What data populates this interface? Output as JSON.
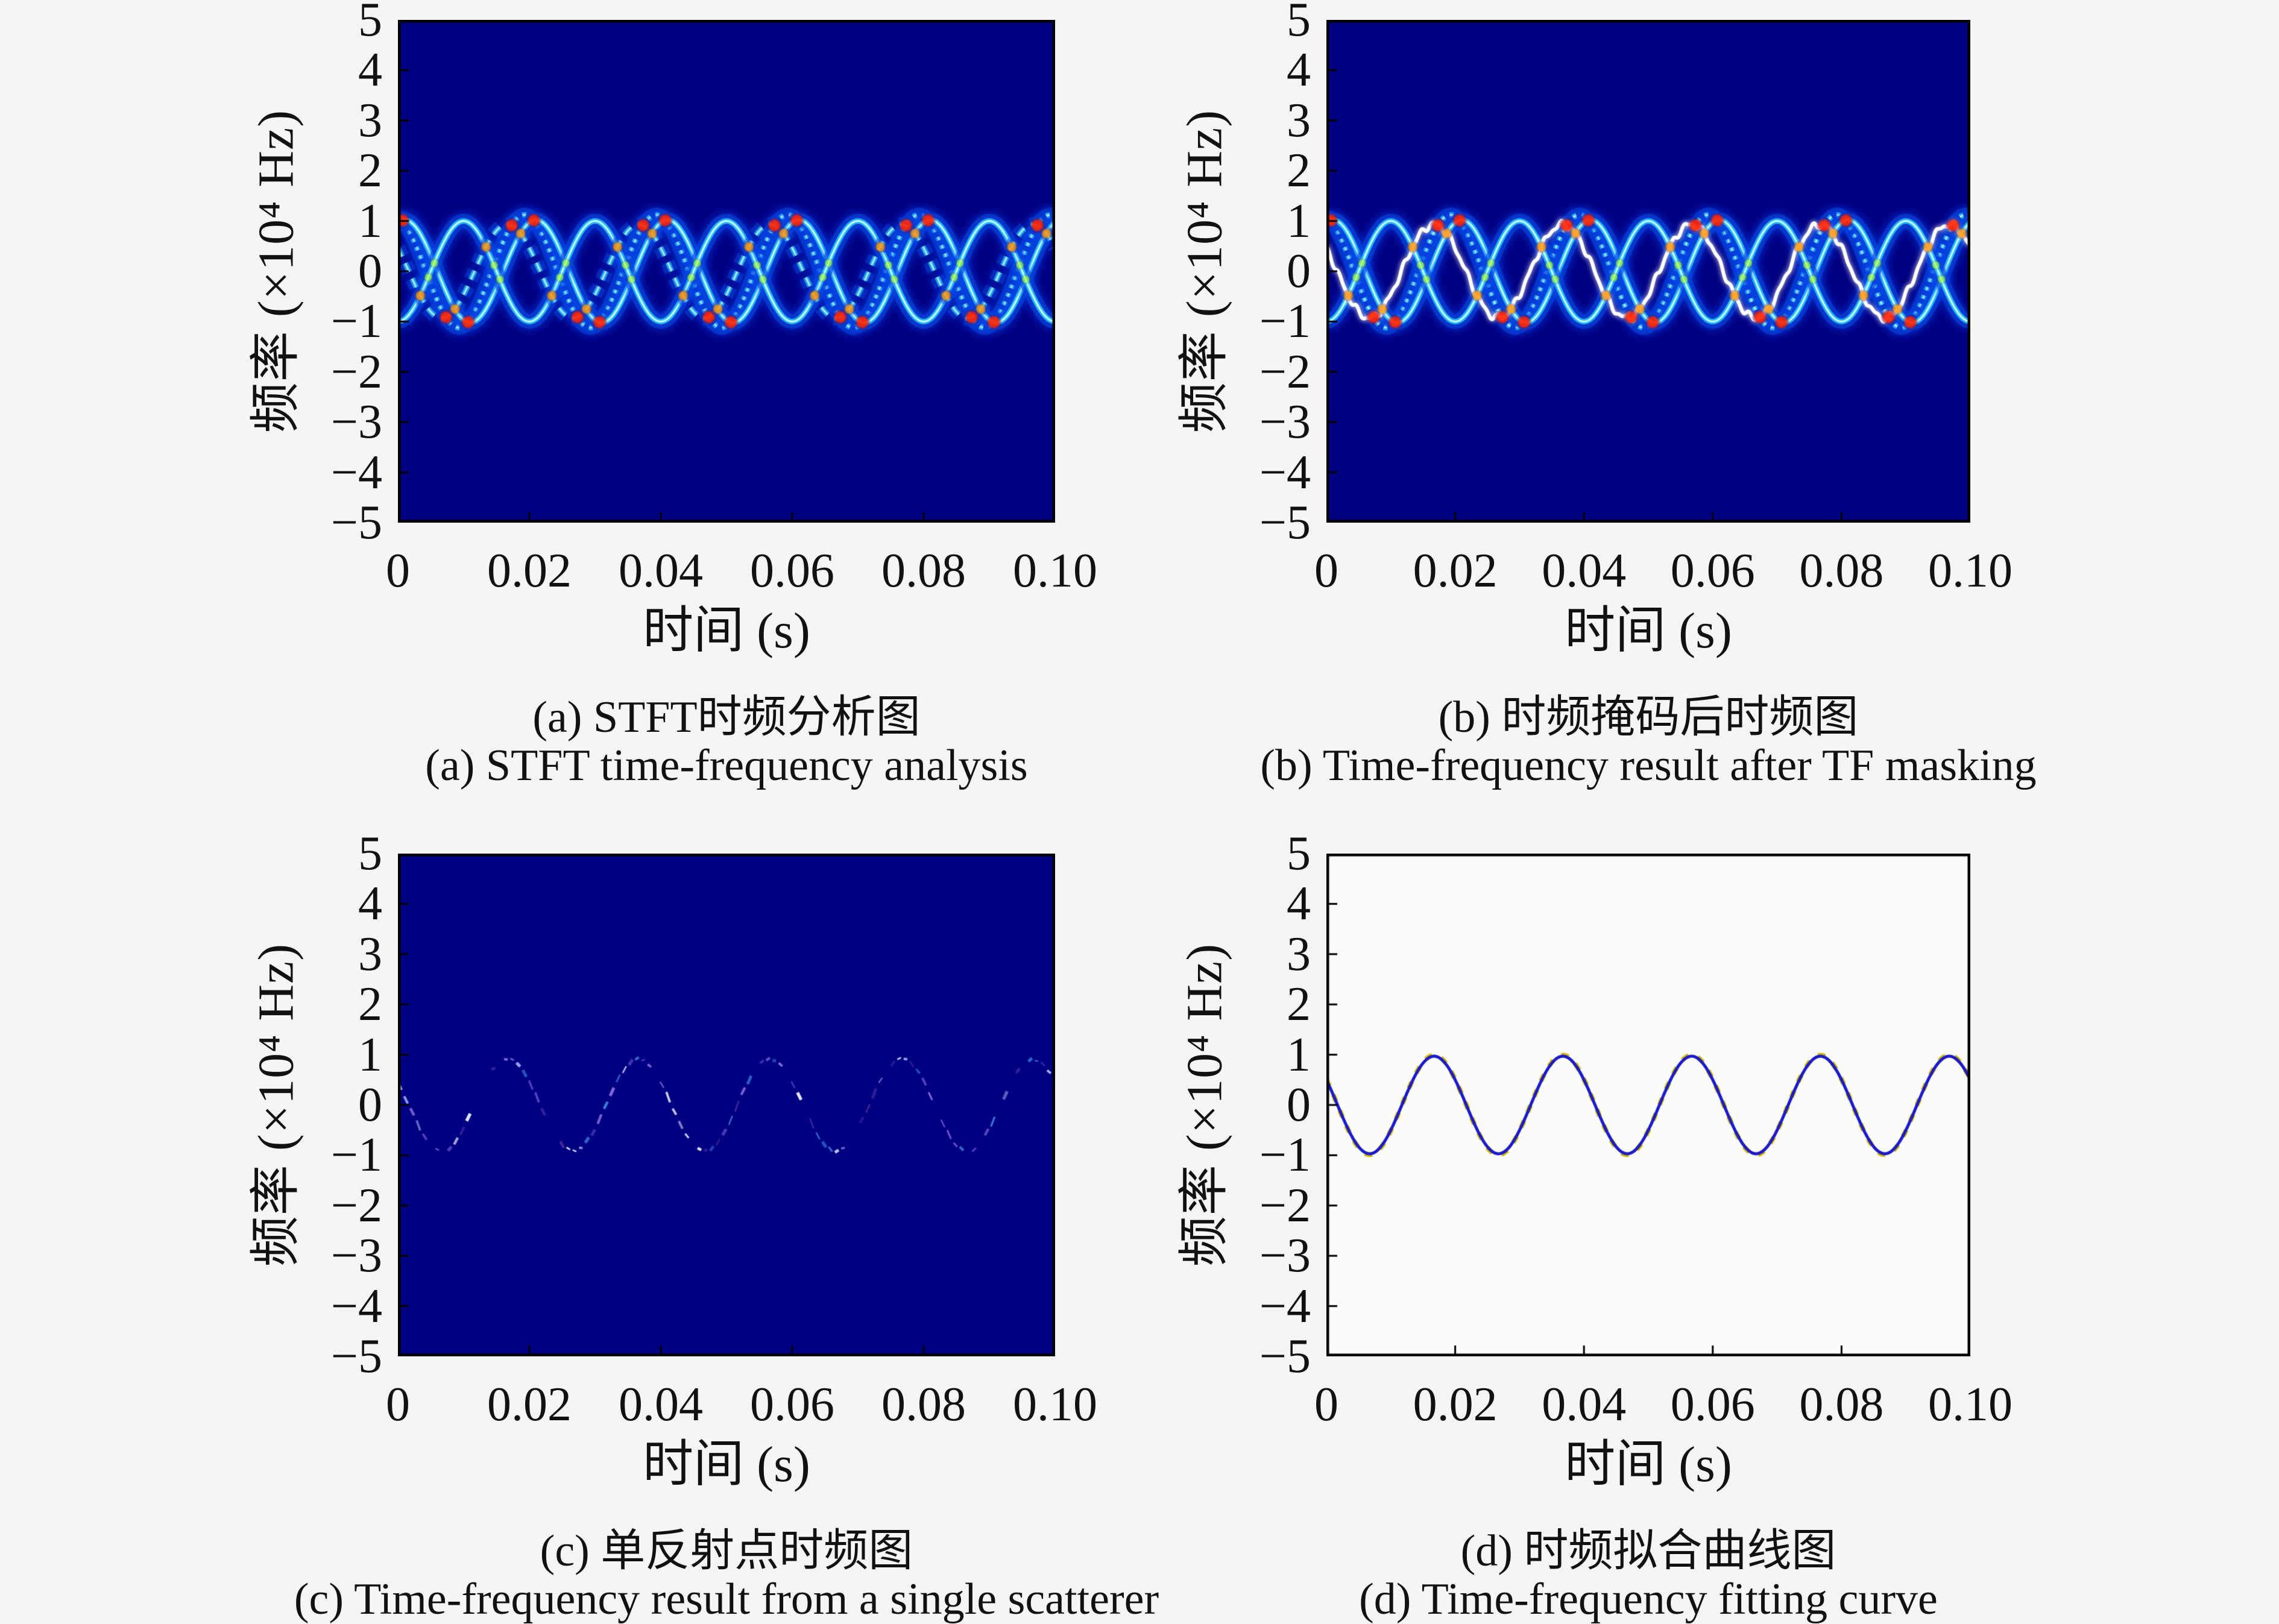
{
  "figure": {
    "rows": 2,
    "cols": 2,
    "page_background": "#f5f5f3",
    "text_color": "#111111"
  },
  "chart_data": [
    {
      "id": "a",
      "type": "heatmap",
      "variant": "stft-spectrogram",
      "title_zh": "(a) STFT时频分析图",
      "title_en": "(a) STFT time-frequency analysis",
      "xlabel": "时间 (s)",
      "ylabel": "频率 (×10⁴ Hz)",
      "xlim": [
        0,
        0.1
      ],
      "ylim": [
        -5,
        5
      ],
      "xticks": [
        "0",
        "0.02",
        "0.04",
        "0.06",
        "0.08",
        "0.10"
      ],
      "xtick_values": [
        0,
        0.02,
        0.04,
        0.06,
        0.08,
        0.1
      ],
      "yticks": [
        "5",
        "4",
        "3",
        "2",
        "1",
        "0",
        "−1",
        "−2",
        "−3",
        "−4",
        "−5"
      ],
      "ytick_values": [
        5,
        4,
        3,
        2,
        1,
        0,
        -1,
        -2,
        -3,
        -4,
        -5
      ],
      "background": "#000082",
      "frame_color": "#000000",
      "grid": false,
      "legend": null,
      "signal": {
        "freq_hz": 50,
        "period_s": 0.02
      },
      "traces": [
        {
          "amplitude": 1.12,
          "phase_rad": 1.8,
          "style": "dotted",
          "palette": "jet"
        },
        {
          "amplitude": 1.02,
          "phase_rad": 1.25,
          "style": "solid",
          "palette": "jet"
        },
        {
          "amplitude": 1.0,
          "phase_rad": -1.571,
          "style": "solid",
          "palette": "jet"
        },
        {
          "amplitude": 0.93,
          "phase_rad": 2.62,
          "style": "dashed",
          "palette": "jet"
        }
      ],
      "hotspots": true,
      "hot_colors": {
        "high": "#ff2000",
        "mid": "#ff9000",
        "low": "#aaff28"
      }
    },
    {
      "id": "b",
      "type": "heatmap",
      "variant": "masked-spectrogram",
      "title_zh": "(b) 时频掩码后时频图",
      "title_en": "(b) Time-frequency result after TF masking",
      "xlabel": "时间 (s)",
      "ylabel": "频率 (×10⁴ Hz)",
      "xlim": [
        0,
        0.1
      ],
      "ylim": [
        -5,
        5
      ],
      "xticks": [
        "0",
        "0.02",
        "0.04",
        "0.06",
        "0.08",
        "0.10"
      ],
      "xtick_values": [
        0,
        0.02,
        0.04,
        0.06,
        0.08,
        0.1
      ],
      "yticks": [
        "5",
        "4",
        "3",
        "2",
        "1",
        "0",
        "−1",
        "−2",
        "−3",
        "−4",
        "−5"
      ],
      "ytick_values": [
        5,
        4,
        3,
        2,
        1,
        0,
        -1,
        -2,
        -3,
        -4,
        -5
      ],
      "background": "#000082",
      "frame_color": "#000000",
      "grid": false,
      "legend": null,
      "signal": {
        "freq_hz": 50,
        "period_s": 0.02
      },
      "traces": [
        {
          "amplitude": 1.12,
          "phase_rad": 1.8,
          "style": "dotted",
          "palette": "jet"
        },
        {
          "amplitude": 1.02,
          "phase_rad": 1.25,
          "style": "solid",
          "palette": "jet"
        },
        {
          "amplitude": 1.0,
          "phase_rad": -1.571,
          "style": "solid",
          "palette": "jet"
        },
        {
          "amplitude": 0.93,
          "phase_rad": 2.62,
          "style": "white-ridge",
          "palette": "white",
          "color": "#ffffff"
        }
      ],
      "hotspots": true,
      "hot_colors": {
        "high": "#ff2000",
        "mid": "#ff9000",
        "low": "#aaff28"
      }
    },
    {
      "id": "c",
      "type": "heatmap",
      "variant": "single-scatterer-spectrogram",
      "title_zh": "(c) 单反射点时频图",
      "title_en": "(c) Time-frequency result from a single scatterer",
      "xlabel": "时间 (s)",
      "ylabel": "频率 (×10⁴ Hz)",
      "xlim": [
        0,
        0.1
      ],
      "ylim": [
        -5,
        5
      ],
      "xticks": [
        "0",
        "0.02",
        "0.04",
        "0.06",
        "0.08",
        "0.10"
      ],
      "xtick_values": [
        0,
        0.02,
        0.04,
        0.06,
        0.08,
        0.1
      ],
      "yticks": [
        "5",
        "4",
        "3",
        "2",
        "1",
        "0",
        "−1",
        "−2",
        "−3",
        "−4",
        "−5"
      ],
      "ytick_values": [
        5,
        4,
        3,
        2,
        1,
        0,
        -1,
        -2,
        -3,
        -4,
        -5
      ],
      "background": "#000082",
      "frame_color": "#000000",
      "grid": false,
      "legend": null,
      "signal": {
        "freq_hz": 50,
        "period_s": 0.02
      },
      "traces": [
        {
          "amplitude": 0.92,
          "phase_rad": 2.62,
          "style": "speckle",
          "palette": "faint"
        }
      ],
      "speckle_colors": [
        "#46289f",
        "#6a4fd0",
        "#9fb8ff",
        "#e9e9ff",
        "#3a7fd8",
        "#8f6fe0"
      ],
      "hotspots": false
    },
    {
      "id": "d",
      "type": "line",
      "variant": "fitted-curve",
      "title_zh": "(d) 时频拟合曲线图",
      "title_en": "(d) Time-frequency fitting curve",
      "xlabel": "时间 (s)",
      "ylabel": "频率 (×10⁴ Hz)",
      "xlim": [
        0,
        0.1
      ],
      "ylim": [
        -5,
        5
      ],
      "xticks": [
        "0",
        "0.02",
        "0.04",
        "0.06",
        "0.08",
        "0.10"
      ],
      "xtick_values": [
        0,
        0.02,
        0.04,
        0.06,
        0.08,
        0.1
      ],
      "yticks": [
        "5",
        "4",
        "3",
        "2",
        "1",
        "0",
        "−1",
        "−2",
        "−3",
        "−4",
        "−5"
      ],
      "ytick_values": [
        5,
        4,
        3,
        2,
        1,
        0,
        -1,
        -2,
        -3,
        -4,
        -5
      ],
      "background": "#fbfbf9",
      "frame_color": "#000000",
      "grid": false,
      "legend": null,
      "signal": {
        "freq_hz": 50,
        "period_s": 0.02
      },
      "series": {
        "kind": "sine",
        "amplitude": 0.97,
        "phase_rad": 2.6,
        "freq_hz": 50,
        "color": "#1b1bc8",
        "underlay_color": "#d4b80a"
      }
    }
  ]
}
